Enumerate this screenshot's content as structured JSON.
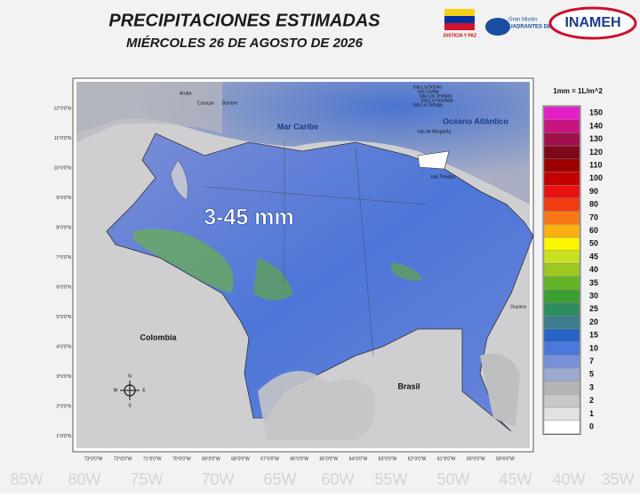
{
  "header": {
    "title": "PRECIPITACIONES  ESTIMADAS",
    "subtitle": "MIÉRCOLES 26 DE AGOSTO DE 2026"
  },
  "logos": {
    "flag_caption": "JUSTICIA Y PAZ",
    "mision_line1": "Gran Misión",
    "mision_line2": "CUADRANTES DE PAZ",
    "inameh": "INAMEH"
  },
  "map": {
    "highlight": "3-45 mm",
    "places": {
      "sea": "Mar Caribe",
      "ocean": "Océano Atlántico",
      "colombia": "Colombia",
      "brasil": "Brasil",
      "guyana": "Guyana",
      "aruba": "Aruba",
      "curacao": "Curaçao",
      "bonaire": "Bonaire",
      "trinidad": "Isla Trinidad",
      "margarita": "Isla de Margarita",
      "tortuga": "Isla La Tortuga",
      "orchila": "Isla La Orchila",
      "islas_norte": [
        "Isla Caribe",
        "Isla Los Testigos",
        "Isla La Granada"
      ]
    },
    "lat_labels": [
      "12°0'0\"N",
      "11°0'0\"N",
      "10°0'0\"N",
      "9°0'0\"N",
      "8°0'0\"N",
      "7°0'0\"N",
      "6°0'0\"N",
      "5°0'0\"N",
      "4°0'0\"N",
      "3°0'0\"N",
      "2°0'0\"N",
      "1°0'0\"N"
    ],
    "lon_labels": [
      "73°0'0\"W",
      "72°0'0\"W",
      "71°0'0\"W",
      "70°0'0\"W",
      "69°0'0\"W",
      "68°0'0\"W",
      "67°0'0\"W",
      "66°0'0\"W",
      "65°0'0\"W",
      "64°0'0\"W",
      "63°0'0\"W",
      "62°0'0\"W",
      "61°0'0\"W",
      "60°0'0\"W",
      "59°0'0\"W"
    ],
    "compass": [
      "N",
      "E",
      "S",
      "W"
    ],
    "background_labels": [
      "85W",
      "80W",
      "75W",
      "70W",
      "65W",
      "60W",
      "55W",
      "50W",
      "45W",
      "40W",
      "35W"
    ]
  },
  "legend": {
    "unit": "1mm = 1L/m^2",
    "items": [
      {
        "value": 150,
        "color": "#e61ec8"
      },
      {
        "value": 140,
        "color": "#c8147e"
      },
      {
        "value": 130,
        "color": "#a0104c"
      },
      {
        "value": 120,
        "color": "#7c0818"
      },
      {
        "value": 110,
        "color": "#9c0000"
      },
      {
        "value": 100,
        "color": "#c40000"
      },
      {
        "value": 90,
        "color": "#e81212"
      },
      {
        "value": 80,
        "color": "#f03c10"
      },
      {
        "value": 70,
        "color": "#f87818"
      },
      {
        "value": 60,
        "color": "#fcb010"
      },
      {
        "value": 50,
        "color": "#fcf400"
      },
      {
        "value": 45,
        "color": "#c8e020"
      },
      {
        "value": 40,
        "color": "#9cc820"
      },
      {
        "value": 35,
        "color": "#64b428"
      },
      {
        "value": 30,
        "color": "#3ca030"
      },
      {
        "value": 25,
        "color": "#2e8c5c"
      },
      {
        "value": 20,
        "color": "#3c7c8c"
      },
      {
        "value": 15,
        "color": "#2864c8"
      },
      {
        "value": 10,
        "color": "#4a78dc"
      },
      {
        "value": 7,
        "color": "#7890d8"
      },
      {
        "value": 5,
        "color": "#9caad0"
      },
      {
        "value": 3,
        "color": "#b4b4b4"
      },
      {
        "value": 2,
        "color": "#c8c8c8"
      },
      {
        "value": 1,
        "color": "#e2e2e2"
      },
      {
        "value": 0,
        "color": "#ffffff"
      }
    ]
  }
}
